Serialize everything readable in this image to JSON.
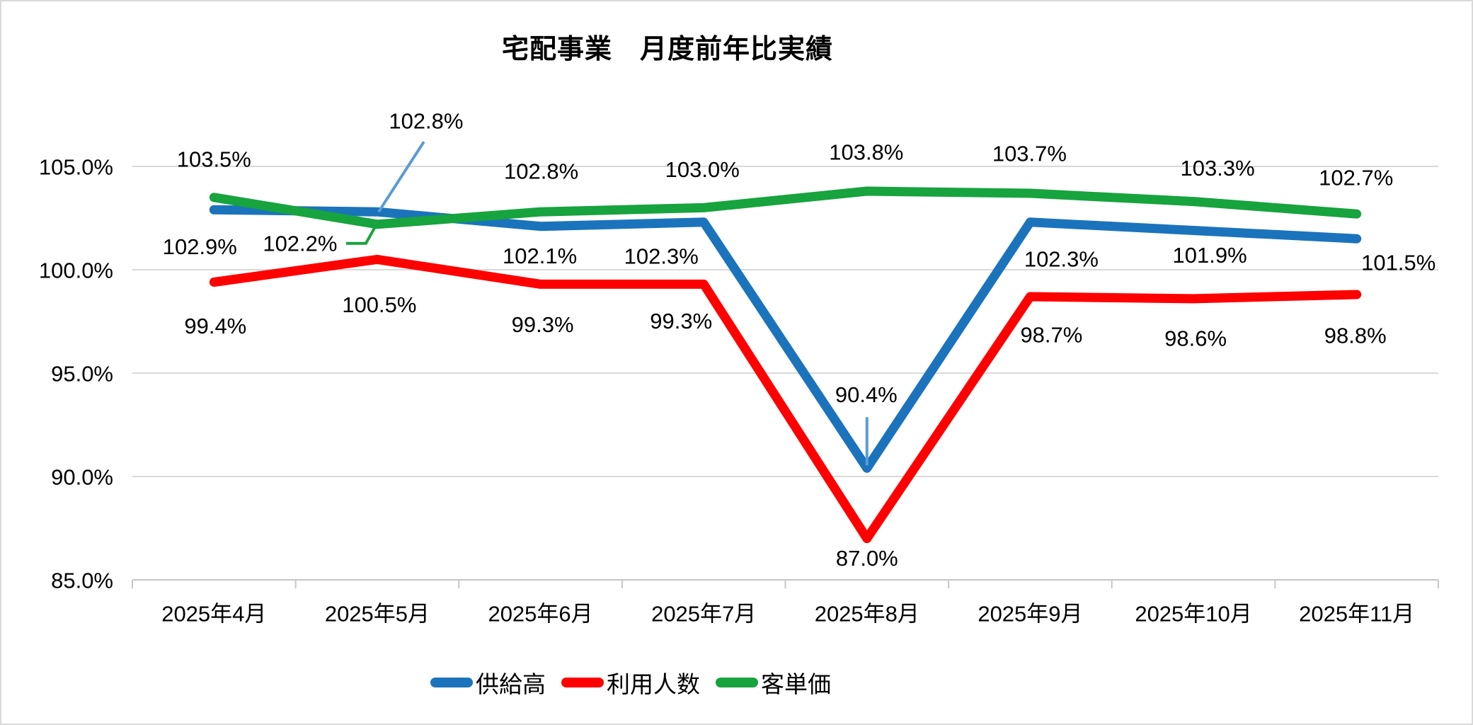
{
  "title": "宅配事業　月度前年比実績",
  "chart_data": {
    "type": "line",
    "title": "宅配事業　月度前年比実績",
    "categories": [
      "2025年4月",
      "2025年5月",
      "2025年6月",
      "2025年7月",
      "2025年8月",
      "2025年9月",
      "2025年10月",
      "2025年11月"
    ],
    "series": [
      {
        "name": "供給高",
        "color": "#1b74bb",
        "values": [
          102.9,
          102.8,
          102.1,
          102.3,
          90.4,
          102.3,
          101.9,
          101.5
        ]
      },
      {
        "name": "利用人数",
        "color": "#fe0000",
        "values": [
          99.4,
          100.5,
          99.3,
          99.3,
          87.0,
          98.7,
          98.6,
          98.8
        ]
      },
      {
        "name": "客単価",
        "color": "#17a33e",
        "values": [
          103.5,
          102.2,
          102.8,
          103.0,
          103.8,
          103.7,
          103.3,
          102.7
        ]
      }
    ],
    "xlabel": "",
    "ylabel": "",
    "ylim": [
      85,
      105
    ],
    "ytick_step": 5,
    "ytick_labels": [
      "85.0%",
      "90.0%",
      "95.0%",
      "100.0%",
      "105.0%"
    ],
    "data_label_format": "0.0%",
    "grid": true,
    "legend_position": "bottom",
    "colors": {
      "gridline": "#d9d9d9",
      "axis": "#c6c6c6",
      "label_text": "#000000",
      "callout_leader_blue": "#5b9bd5"
    },
    "layout_hints": {
      "label_offsets": [
        [
          [
            -20,
            52
          ],
          [
            69,
            -128
          ],
          [
            -1,
            42
          ],
          [
            -60,
            48
          ],
          [
            -1,
            -104
          ],
          [
            44,
            52
          ],
          [
            23,
            35
          ],
          [
            59,
            34
          ]
        ],
        [
          [
            2,
            62
          ],
          [
            3,
            64
          ],
          [
            3,
            57
          ],
          [
            -32,
            52
          ],
          [
            0,
            28
          ],
          [
            30,
            54
          ],
          [
            3,
            56
          ],
          [
            -2,
            58
          ]
        ],
        [
          [
            0,
            -54
          ],
          [
            -109,
            27
          ],
          [
            1,
            -57
          ],
          [
            -2,
            -54
          ],
          [
            -1,
            -55
          ],
          [
            -1,
            -56
          ],
          [
            34,
            -47
          ],
          [
            -1,
            -51
          ]
        ]
      ],
      "callouts": [
        {
          "series": 0,
          "point": 1,
          "color": "#5b9bd5",
          "path": [
            [
              66,
              -99
            ],
            [
              2,
              0
            ]
          ]
        },
        {
          "series": 0,
          "point": 4,
          "color": "#5b9bd5",
          "path": [
            [
              0,
              -72
            ],
            [
              0,
              -4
            ]
          ]
        },
        {
          "series": 2,
          "point": 1,
          "color": "#17a33e",
          "path": [
            [
              -44,
              27
            ],
            [
              -16,
              27
            ],
            [
              -2,
              2
            ]
          ]
        }
      ]
    }
  }
}
